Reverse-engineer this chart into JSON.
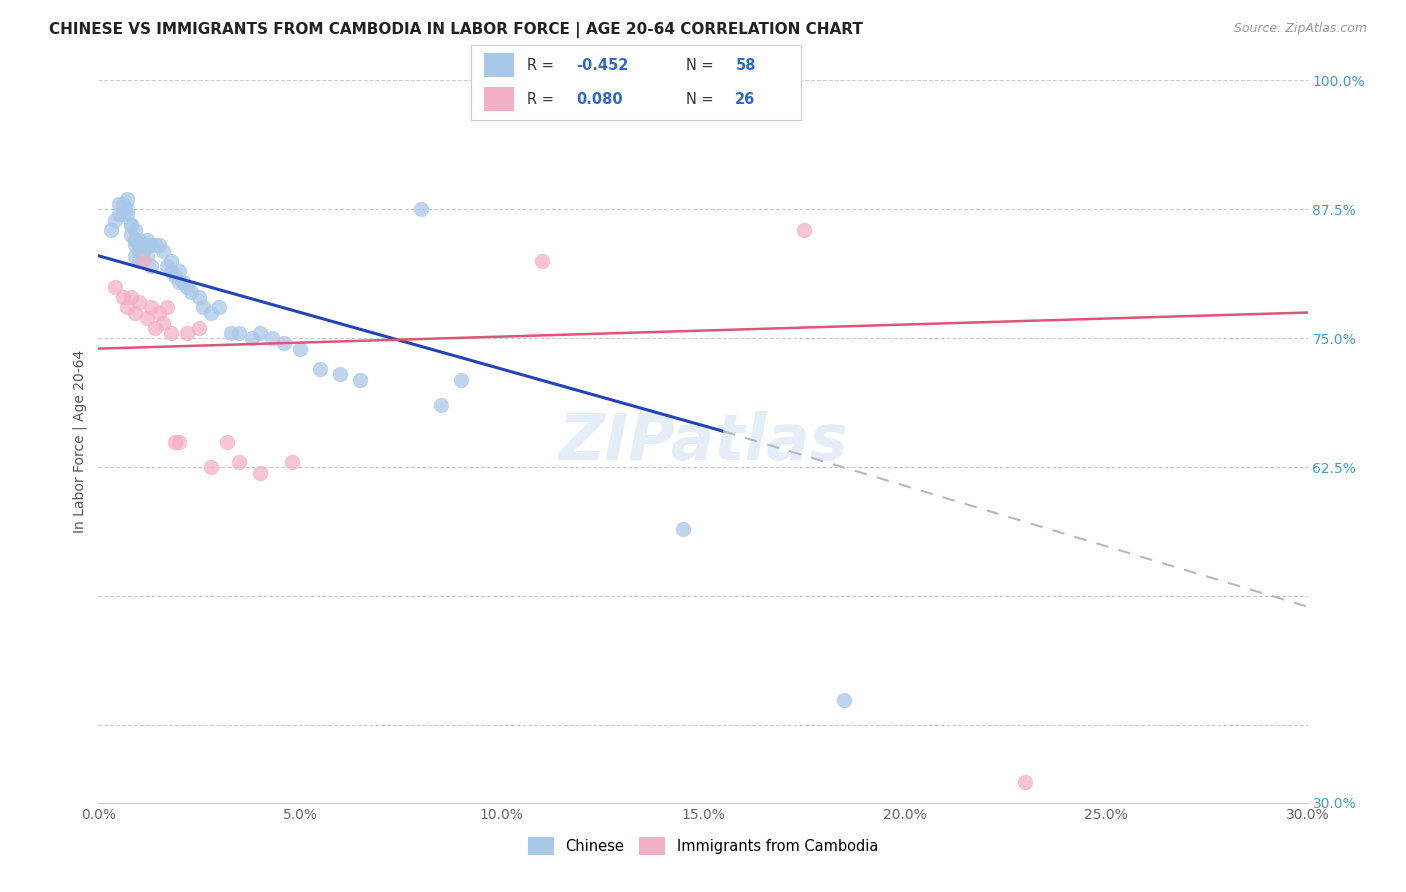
{
  "title": "CHINESE VS IMMIGRANTS FROM CAMBODIA IN LABOR FORCE | AGE 20-64 CORRELATION CHART",
  "source": "Source: ZipAtlas.com",
  "ylabel": "In Labor Force | Age 20-64",
  "xlim": [
    0.0,
    0.3
  ],
  "ylim": [
    0.3,
    1.0
  ],
  "xticks": [
    0.0,
    0.05,
    0.1,
    0.15,
    0.2,
    0.25,
    0.3
  ],
  "yticks": [
    0.3,
    0.375,
    0.5,
    0.625,
    0.75,
    0.875,
    1.0
  ],
  "xtick_labels": [
    "0.0%",
    "5.0%",
    "10.0%",
    "15.0%",
    "20.0%",
    "25.0%",
    "30.0%"
  ],
  "ytick_right_labels": [
    "30.0%",
    "",
    "",
    "62.5%",
    "75.0%",
    "87.5%",
    "100.0%"
  ],
  "legend_r_chinese": "-0.452",
  "legend_n_chinese": "58",
  "legend_r_cambodia": "0.080",
  "legend_n_cambodia": "26",
  "chinese_color": "#a8c8e8",
  "cambodia_color": "#f4b0c4",
  "trend_chinese_solid_color": "#2244bb",
  "trend_cambodia_color": "#dd5577",
  "trend_dashed_color": "#b0b8c8",
  "watermark": "ZIPatlas",
  "chinese_trend_x0": 0.0,
  "chinese_trend_y0": 0.83,
  "chinese_trend_x1": 0.155,
  "chinese_trend_y1": 0.66,
  "chinese_trend_dashed_x1": 0.3,
  "chinese_trend_dashed_y1": 0.49,
  "cambodia_trend_x0": 0.0,
  "cambodia_trend_y0": 0.74,
  "cambodia_trend_x1": 0.3,
  "cambodia_trend_y1": 0.775,
  "chinese_x": [
    0.003,
    0.004,
    0.005,
    0.005,
    0.006,
    0.006,
    0.007,
    0.007,
    0.007,
    0.008,
    0.008,
    0.008,
    0.009,
    0.009,
    0.009,
    0.009,
    0.01,
    0.01,
    0.01,
    0.01,
    0.011,
    0.011,
    0.011,
    0.012,
    0.012,
    0.013,
    0.013,
    0.014,
    0.015,
    0.016,
    0.017,
    0.018,
    0.018,
    0.019,
    0.02,
    0.02,
    0.021,
    0.022,
    0.023,
    0.025,
    0.026,
    0.028,
    0.03,
    0.033,
    0.035,
    0.038,
    0.04,
    0.043,
    0.046,
    0.05,
    0.055,
    0.06,
    0.065,
    0.08,
    0.085,
    0.09,
    0.145,
    0.185
  ],
  "chinese_y": [
    0.855,
    0.865,
    0.88,
    0.87,
    0.88,
    0.87,
    0.885,
    0.875,
    0.87,
    0.86,
    0.86,
    0.85,
    0.855,
    0.845,
    0.84,
    0.83,
    0.845,
    0.84,
    0.835,
    0.825,
    0.84,
    0.835,
    0.825,
    0.845,
    0.83,
    0.84,
    0.82,
    0.84,
    0.84,
    0.835,
    0.82,
    0.825,
    0.815,
    0.81,
    0.815,
    0.805,
    0.805,
    0.8,
    0.795,
    0.79,
    0.78,
    0.775,
    0.78,
    0.755,
    0.755,
    0.75,
    0.755,
    0.75,
    0.745,
    0.74,
    0.72,
    0.715,
    0.71,
    0.875,
    0.685,
    0.71,
    0.565,
    0.4
  ],
  "cambodia_x": [
    0.004,
    0.006,
    0.007,
    0.008,
    0.009,
    0.01,
    0.011,
    0.012,
    0.013,
    0.014,
    0.015,
    0.016,
    0.017,
    0.018,
    0.019,
    0.02,
    0.022,
    0.025,
    0.028,
    0.032,
    0.035,
    0.04,
    0.048,
    0.11,
    0.175,
    0.23
  ],
  "cambodia_y": [
    0.8,
    0.79,
    0.78,
    0.79,
    0.775,
    0.785,
    0.825,
    0.77,
    0.78,
    0.76,
    0.775,
    0.765,
    0.78,
    0.755,
    0.65,
    0.65,
    0.755,
    0.76,
    0.625,
    0.65,
    0.63,
    0.62,
    0.63,
    0.825,
    0.855,
    0.32
  ]
}
